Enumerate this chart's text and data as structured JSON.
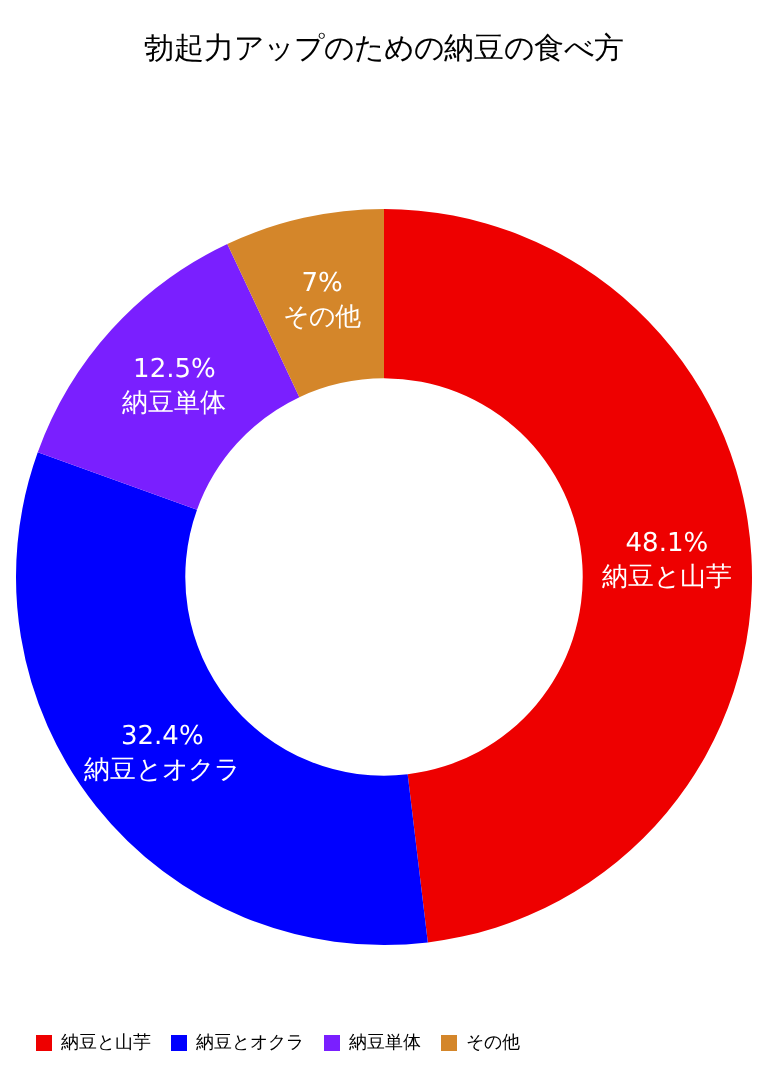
{
  "chart_data": {
    "type": "donut",
    "title": "勃起力アップのための納豆の食べ方",
    "categories": [
      "納豆と山芋",
      "納豆とオクラ",
      "納豆単体",
      "その他"
    ],
    "values": [
      48.1,
      32.4,
      12.5,
      7
    ],
    "value_labels": [
      "48.1%",
      "32.4%",
      "12.5%",
      "7%"
    ],
    "colors": [
      "#ee0000",
      "#0000ff",
      "#7a1fff",
      "#d4862a"
    ],
    "legend": "bottom left"
  }
}
